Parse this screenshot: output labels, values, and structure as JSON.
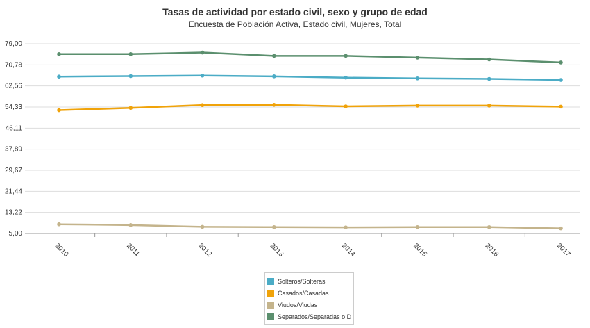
{
  "chart_data": {
    "type": "line",
    "title": "Tasas de actividad por estado civil, sexo y grupo de edad",
    "subtitle": "Encuesta de Población Activa, Estado civil, Mujeres, Total",
    "xlabel": "",
    "ylabel": "",
    "categories": [
      "2010",
      "2011",
      "2012",
      "2013",
      "2014",
      "2015",
      "2016",
      "2017"
    ],
    "y_ticks": [
      "79,00",
      "70,78",
      "62,56",
      "54,33",
      "46,11",
      "37,89",
      "29,67",
      "21,44",
      "13,22",
      "5,00"
    ],
    "ylim": [
      5.0,
      79.0
    ],
    "grid": true,
    "legend_position": "bottom-center",
    "series": [
      {
        "name": "Solteros/Solteras",
        "color": "#4bacc6",
        "values": [
          66.2,
          66.4,
          66.6,
          66.3,
          65.8,
          65.5,
          65.3,
          64.9
        ]
      },
      {
        "name": "Casados/Casadas",
        "color": "#f0a30a",
        "values": [
          53.1,
          54.0,
          55.1,
          55.2,
          54.6,
          54.9,
          54.9,
          54.5
        ]
      },
      {
        "name": "Viudos/Viudas",
        "color": "#c4b48c",
        "values": [
          8.6,
          8.3,
          7.6,
          7.5,
          7.4,
          7.5,
          7.5,
          7.0
        ]
      },
      {
        "name": "Separados/Separadas o Divorcia.",
        "color": "#5b8f6e",
        "values": [
          75.0,
          75.0,
          75.6,
          74.3,
          74.3,
          73.6,
          72.9,
          71.7
        ]
      }
    ]
  }
}
